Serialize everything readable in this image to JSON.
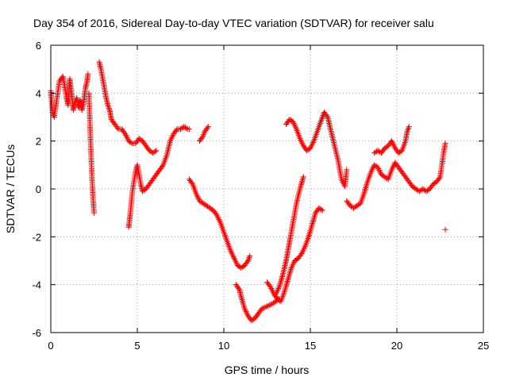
{
  "chart_data": {
    "type": "scatter",
    "title": "Day 354 of 2016, Sidereal Day-to-day VTEC variation (SDTVAR) for receiver salu",
    "xlabel": "GPS time / hours",
    "ylabel": "SDTVAR / TECUs",
    "xlim": [
      0,
      25
    ],
    "ylim": [
      -6,
      6
    ],
    "xticks": [
      0,
      5,
      10,
      15,
      20,
      25
    ],
    "yticks": [
      -6,
      -4,
      -2,
      0,
      2,
      4,
      6
    ],
    "grid": true,
    "marker": "+",
    "color": "#ff0000",
    "segments": [
      [
        [
          0.0,
          4.1
        ],
        [
          0.1,
          3.2
        ],
        [
          0.2,
          3.0
        ],
        [
          0.3,
          3.5
        ],
        [
          0.4,
          4.0
        ],
        [
          0.5,
          4.5
        ],
        [
          0.6,
          4.6
        ],
        [
          0.7,
          4.7
        ],
        [
          0.8,
          4.3
        ],
        [
          0.9,
          3.8
        ],
        [
          1.0,
          3.5
        ],
        [
          1.1,
          4.6
        ],
        [
          1.2,
          4.0
        ],
        [
          1.3,
          3.3
        ],
        [
          1.4,
          3.6
        ],
        [
          1.5,
          3.8
        ],
        [
          1.6,
          3.4
        ],
        [
          1.7,
          3.7
        ],
        [
          1.8,
          3.3
        ],
        [
          1.9,
          3.6
        ],
        [
          2.0,
          4.2
        ],
        [
          2.1,
          4.5
        ],
        [
          2.15,
          4.8
        ]
      ],
      [
        [
          2.2,
          4.0
        ],
        [
          2.25,
          3.0
        ],
        [
          2.3,
          2.0
        ],
        [
          2.35,
          1.0
        ],
        [
          2.4,
          0.2
        ],
        [
          2.45,
          -0.5
        ],
        [
          2.5,
          -1.0
        ]
      ],
      [
        [
          2.8,
          5.3
        ],
        [
          2.9,
          5.0
        ],
        [
          3.0,
          4.6
        ],
        [
          3.1,
          4.2
        ],
        [
          3.2,
          3.8
        ],
        [
          3.3,
          3.5
        ],
        [
          3.4,
          3.3
        ],
        [
          3.5,
          2.9
        ],
        [
          3.7,
          2.7
        ],
        [
          3.9,
          2.5
        ],
        [
          4.1,
          2.5
        ],
        [
          4.3,
          2.3
        ],
        [
          4.5,
          2.0
        ],
        [
          4.7,
          1.9
        ],
        [
          4.9,
          1.9
        ],
        [
          5.1,
          2.1
        ],
        [
          5.3,
          2.0
        ],
        [
          5.5,
          1.8
        ],
        [
          5.7,
          1.6
        ],
        [
          5.9,
          1.5
        ],
        [
          6.1,
          1.6
        ]
      ],
      [
        [
          4.5,
          -1.6
        ],
        [
          4.55,
          -1.3
        ],
        [
          4.6,
          -1.0
        ],
        [
          4.65,
          -0.6
        ],
        [
          4.7,
          -0.2
        ],
        [
          4.8,
          0.3
        ],
        [
          4.9,
          0.7
        ],
        [
          5.0,
          1.0
        ],
        [
          5.1,
          0.6
        ],
        [
          5.2,
          0.2
        ],
        [
          5.3,
          -0.1
        ],
        [
          5.5,
          0.0
        ],
        [
          5.7,
          0.2
        ],
        [
          5.9,
          0.4
        ],
        [
          6.1,
          0.6
        ],
        [
          6.3,
          0.8
        ],
        [
          6.5,
          1.0
        ],
        [
          6.7,
          1.4
        ],
        [
          6.9,
          2.0
        ],
        [
          7.1,
          2.3
        ],
        [
          7.3,
          2.5
        ],
        [
          7.5,
          2.5
        ],
        [
          7.7,
          2.6
        ],
        [
          7.9,
          2.5
        ],
        [
          8.0,
          2.5
        ]
      ],
      [
        [
          8.6,
          2.0
        ],
        [
          8.7,
          2.1
        ],
        [
          8.8,
          2.2
        ],
        [
          8.9,
          2.4
        ],
        [
          9.0,
          2.5
        ],
        [
          9.1,
          2.6
        ]
      ],
      [
        [
          8.0,
          0.4
        ],
        [
          8.2,
          0.2
        ],
        [
          8.4,
          -0.2
        ],
        [
          8.6,
          -0.5
        ],
        [
          8.8,
          -0.6
        ],
        [
          9.0,
          -0.7
        ],
        [
          9.2,
          -0.8
        ],
        [
          9.4,
          -0.9
        ],
        [
          9.6,
          -1.1
        ],
        [
          9.8,
          -1.4
        ],
        [
          10.0,
          -1.8
        ],
        [
          10.2,
          -2.2
        ],
        [
          10.4,
          -2.6
        ],
        [
          10.6,
          -2.9
        ],
        [
          10.8,
          -3.2
        ],
        [
          11.0,
          -3.3
        ],
        [
          11.2,
          -3.2
        ],
        [
          11.4,
          -3.0
        ],
        [
          11.5,
          -2.8
        ]
      ],
      [
        [
          10.7,
          -4.0
        ],
        [
          10.9,
          -4.2
        ],
        [
          11.0,
          -4.5
        ],
        [
          11.2,
          -5.0
        ],
        [
          11.4,
          -5.3
        ],
        [
          11.6,
          -5.5
        ],
        [
          11.8,
          -5.4
        ],
        [
          12.0,
          -5.2
        ],
        [
          12.2,
          -5.0
        ],
        [
          12.5,
          -4.9
        ],
        [
          12.8,
          -4.8
        ],
        [
          13.0,
          -4.7
        ],
        [
          13.2,
          -4.6
        ]
      ],
      [
        [
          12.5,
          -3.9
        ],
        [
          12.7,
          -4.1
        ],
        [
          12.9,
          -4.4
        ],
        [
          13.1,
          -4.6
        ],
        [
          13.3,
          -4.7
        ],
        [
          13.5,
          -4.3
        ],
        [
          13.7,
          -3.8
        ],
        [
          13.9,
          -3.3
        ],
        [
          14.1,
          -3.0
        ],
        [
          14.3,
          -2.9
        ],
        [
          14.5,
          -2.7
        ],
        [
          14.7,
          -2.4
        ],
        [
          14.9,
          -2.0
        ],
        [
          15.1,
          -1.5
        ],
        [
          15.3,
          -1.0
        ],
        [
          15.5,
          -0.8
        ],
        [
          15.7,
          -0.9
        ]
      ],
      [
        [
          13.0,
          -4.4
        ],
        [
          13.2,
          -4.1
        ],
        [
          13.4,
          -3.6
        ],
        [
          13.6,
          -3.0
        ],
        [
          13.8,
          -2.2
        ],
        [
          14.0,
          -1.4
        ],
        [
          14.2,
          -0.6
        ],
        [
          14.4,
          0.0
        ],
        [
          14.6,
          0.5
        ]
      ],
      [
        [
          13.6,
          2.7
        ],
        [
          13.8,
          2.9
        ],
        [
          14.0,
          2.8
        ],
        [
          14.2,
          2.5
        ],
        [
          14.4,
          2.1
        ],
        [
          14.6,
          1.8
        ],
        [
          14.8,
          1.6
        ],
        [
          15.0,
          1.7
        ],
        [
          15.2,
          2.0
        ],
        [
          15.4,
          2.4
        ],
        [
          15.6,
          2.8
        ],
        [
          15.8,
          3.2
        ],
        [
          16.0,
          3.0
        ],
        [
          16.2,
          2.4
        ],
        [
          16.4,
          1.8
        ],
        [
          16.6,
          1.2
        ],
        [
          16.8,
          0.4
        ],
        [
          17.0,
          0.1
        ],
        [
          17.1,
          0.8
        ]
      ],
      [
        [
          17.1,
          -0.5
        ],
        [
          17.3,
          -0.7
        ],
        [
          17.5,
          -0.8
        ],
        [
          17.7,
          -0.7
        ],
        [
          17.9,
          -0.6
        ],
        [
          18.1,
          -0.2
        ],
        [
          18.3,
          0.3
        ],
        [
          18.5,
          0.7
        ],
        [
          18.7,
          1.0
        ],
        [
          18.9,
          0.9
        ],
        [
          19.1,
          0.6
        ],
        [
          19.3,
          0.5
        ],
        [
          19.5,
          0.4
        ],
        [
          19.7,
          0.8
        ],
        [
          19.9,
          1.1
        ],
        [
          20.1,
          0.9
        ],
        [
          20.3,
          0.7
        ],
        [
          20.5,
          0.5
        ],
        [
          20.7,
          0.3
        ],
        [
          20.9,
          0.1
        ],
        [
          21.1,
          0.0
        ],
        [
          21.3,
          -0.1
        ],
        [
          21.5,
          0.0
        ],
        [
          21.7,
          -0.1
        ],
        [
          21.9,
          0.0
        ],
        [
          22.1,
          0.2
        ],
        [
          22.3,
          0.3
        ],
        [
          22.5,
          0.5
        ],
        [
          22.6,
          1.0
        ],
        [
          22.7,
          1.5
        ],
        [
          22.8,
          1.9
        ]
      ],
      [
        [
          18.7,
          1.5
        ],
        [
          18.9,
          1.6
        ],
        [
          19.1,
          1.5
        ],
        [
          19.3,
          1.7
        ],
        [
          19.5,
          1.8
        ],
        [
          19.7,
          2.0
        ],
        [
          19.9,
          1.7
        ],
        [
          20.1,
          1.5
        ],
        [
          20.3,
          1.6
        ],
        [
          20.5,
          2.0
        ],
        [
          20.6,
          2.4
        ],
        [
          20.7,
          2.6
        ]
      ],
      [
        [
          22.8,
          -1.7
        ]
      ]
    ]
  }
}
